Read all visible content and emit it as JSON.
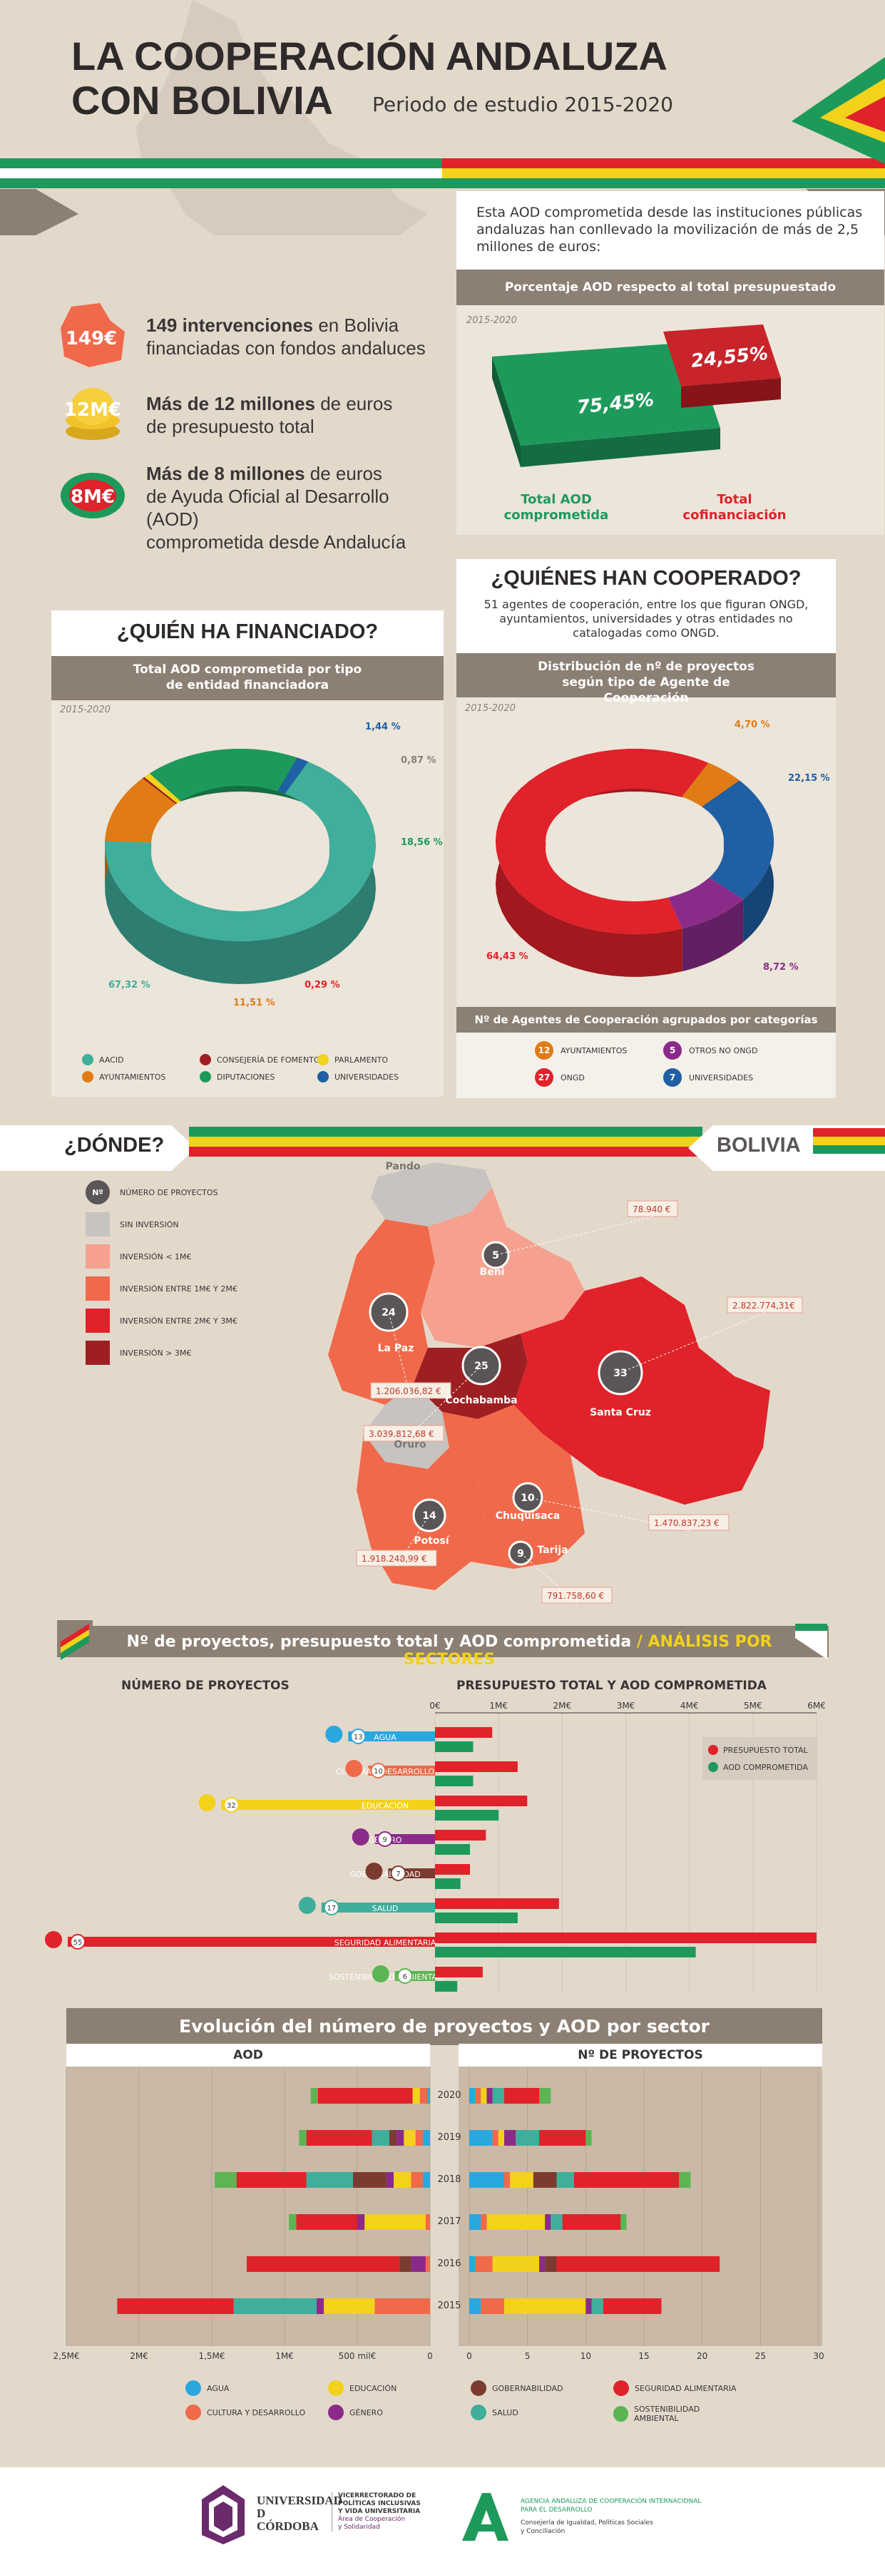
{
  "header": {
    "title_line1": "LA COOPERACIÓN ANDALUZA",
    "title_line2": "CON BOLIVIA",
    "period": "Periodo de estudio 2015-2020"
  },
  "colors": {
    "green": "#1d9a5b",
    "red": "#e0222a",
    "yellow": "#f2d21b",
    "brown": "#8c7f73",
    "teal": "#3fae9b",
    "orange": "#e07b16",
    "blue": "#1f5fa3",
    "purple": "#8a2b8a",
    "darkred": "#9e1f22",
    "lightblue": "#2aa7df"
  },
  "stats": [
    {
      "badge": "149€",
      "bold": "149 intervenciones",
      "text1": " en Bolivia",
      "line2": "financiadas con fondos andaluces"
    },
    {
      "badge": "12M€",
      "bold": "Más de 12 millones",
      "text1": " de euros",
      "line2": "de presupuesto total"
    },
    {
      "badge": "8M€",
      "bold": "Más de 8 millones",
      "text1": " de euros",
      "line2": "de Ayuda Oficial al Desarrollo (AOD)",
      "line3": "comprometida desde Andalucía"
    }
  ],
  "aod_box": {
    "intro": "Esta AOD comprometida desde las instituciones públicas andaluzas han conllevado la movilización de más de 2,5 millones de euros:",
    "header": "Porcentaje AOD respecto al total presupuestado",
    "period": "2015-2020",
    "label_green": "Total AOD comprometida",
    "label_red": "Total cofinanciación"
  },
  "financed": {
    "title": "¿QUIÉN HA FINANCIADO?",
    "header": "Total AOD comprometida por tipo de entidad financiadora",
    "period": "2015-2020",
    "legend": [
      {
        "name": "AACID",
        "color": "#3fae9b"
      },
      {
        "name": "CONSEJERÍA DE FOMENTO",
        "color": "#9e1f22"
      },
      {
        "name": "PARLAMENTO",
        "color": "#f2d21b"
      },
      {
        "name": "AYUNTAMIENTOS",
        "color": "#e07b16"
      },
      {
        "name": "DIPUTACIONES",
        "color": "#1d9a5b"
      },
      {
        "name": "UNIVERSIDADES",
        "color": "#1f5fa3"
      }
    ]
  },
  "cooperated": {
    "title": "¿QUIÉNES HAN COOPERADO?",
    "intro": "51 agentes de cooperación, entre los que figuran ONGD, ayuntamientos, universidades y otras entidades no catalogadas como ONGD.",
    "header": "Distribución de nº de proyectos según tipo de Agente de Cooperación",
    "period": "2015-2020",
    "footer_header": "Nº de Agentes de Cooperación agrupados por categorías",
    "agents": [
      {
        "count": "12",
        "name": "AYUNTAMIENTOS",
        "color": "#e07b16"
      },
      {
        "count": "5",
        "name": "OTROS NO ONGD",
        "color": "#8a2b8a"
      },
      {
        "count": "27",
        "name": "ONGD",
        "color": "#e0222a"
      },
      {
        "count": "7",
        "name": "UNIVERSIDADES",
        "color": "#1f5fa3"
      }
    ]
  },
  "where": {
    "title": "¿DÓNDE?",
    "country": "BOLIVIA",
    "legend": [
      {
        "label": "NÚMERO DE PROYECTOS",
        "color": "#5a5556",
        "badge": "Nº"
      },
      {
        "label": "SIN INVERSIÓN",
        "color": "#c7c3c1"
      },
      {
        "label": "INVERSIÓN < 1M€",
        "color": "#f6a18f"
      },
      {
        "label": "INVERSIÓN ENTRE 1M€ Y 2M€",
        "color": "#f0694a"
      },
      {
        "label": "INVERSIÓN ENTRE 2M€ Y 3M€",
        "color": "#e0222a"
      },
      {
        "label": "INVERSIÓN > 3M€",
        "color": "#9e1f22"
      }
    ],
    "regions": [
      {
        "name": "Pando",
        "projects": "",
        "amount": ""
      },
      {
        "name": "Beni",
        "projects": "5",
        "amount": "78.940 €"
      },
      {
        "name": "La Paz",
        "projects": "24",
        "amount": "1.206.036,82 €"
      },
      {
        "name": "Cochabamba",
        "projects": "25",
        "amount": "3.039.812,68 €"
      },
      {
        "name": "Santa Cruz",
        "projects": "33",
        "amount": "2.822.774,31€"
      },
      {
        "name": "Oruro",
        "projects": "",
        "amount": ""
      },
      {
        "name": "Potosí",
        "projects": "14",
        "amount": "1.918.248,99 €"
      },
      {
        "name": "Chuquisaca",
        "projects": "10",
        "amount": "1.470.837,23 €"
      },
      {
        "name": "Tarija",
        "projects": "9",
        "amount": "791.758,60 €"
      }
    ]
  },
  "sectors": {
    "title": "Nº de proyectos, presupuesto total y AOD comprometida",
    "title_accent": " / ANÁLISIS POR SECTORES",
    "left_header": "NÚMERO DE PROYECTOS",
    "right_header": "PRESUPUESTO TOTAL Y AOD COMPROMETIDA",
    "legend_budget": "PRESUPUESTO TOTAL",
    "legend_aod": "AOD COMPROMETIDA"
  },
  "evolution": {
    "title": "Evolución del número de proyectos y AOD por sector",
    "left_header": "AOD",
    "right_header": "Nº DE PROYECTOS",
    "legend": [
      {
        "name": "AGUA",
        "icon": "drop-icon",
        "color": "#2aa7df"
      },
      {
        "name": "EDUCACIÓN",
        "icon": "book-icon",
        "color": "#f2d21b"
      },
      {
        "name": "GOBERNABILIDAD",
        "icon": "flag-icon",
        "color": "#7b3b30"
      },
      {
        "name": "SEGURIDAD ALIMENTARIA",
        "icon": "apple-icon",
        "color": "#e0222a"
      },
      {
        "name": "CULTURA Y DESARROLLO",
        "icon": "gear-icon",
        "color": "#f0694a"
      },
      {
        "name": "GÉNERO",
        "icon": "gender-icon",
        "color": "#8a2b8a"
      },
      {
        "name": "SALUD",
        "icon": "heart-icon",
        "color": "#3fae9b"
      },
      {
        "name": "SOSTENIBILIDAD AMBIENTAL",
        "icon": "recycle-icon",
        "color": "#5ab552"
      }
    ]
  },
  "footer": {
    "uco_name1": "UNIVERSIDAD",
    "uco_name2": "D",
    "uco_name3": "CÓRDOBA",
    "uco_dept1": "VICERRECTORADO DE",
    "uco_dept2": "POLÍTICAS INCLUSIVAS",
    "uco_dept3": "Y VIDA UNIVERSITARIA",
    "uco_dept4": "Área de Cooperación",
    "uco_dept5": "y Solidaridad",
    "aacid1": "AGENCIA ANDALUZA DE COOPERACIÓN INTERNACIONAL",
    "aacid2": "PARA EL DESARROLLO",
    "aacid3": "Consejería de Igualdad, Políticas Sociales",
    "aacid4": "y Conciliación"
  },
  "chart_data": [
    {
      "type": "bar",
      "title": "Porcentaje AOD respecto al total presupuestado",
      "categories": [
        "Total AOD comprometida",
        "Total cofinanciación"
      ],
      "values": [
        75.45,
        24.55
      ],
      "value_labels": [
        "75,45%",
        "24,55%"
      ]
    },
    {
      "type": "pie",
      "title": "Total AOD comprometida por tipo de entidad financiadora",
      "categories": [
        "AACID",
        "AYUNTAMIENTOS",
        "CONSEJERÍA DE FOMENTO",
        "PARLAMENTO",
        "DIPUTACIONES",
        "UNIVERSIDADES"
      ],
      "values": [
        67.32,
        11.51,
        0.29,
        0.87,
        18.56,
        1.44
      ],
      "value_labels": [
        "67,32 %",
        "11,51 %",
        "0,29 %",
        "0,87 %",
        "18,56 %",
        "1,44 %"
      ]
    },
    {
      "type": "pie",
      "title": "Distribución de nº de proyectos según tipo de Agente de Cooperación",
      "categories": [
        "ONGD",
        "AYUNTAMIENTOS",
        "UNIVERSIDADES",
        "OTROS NO ONGD"
      ],
      "values": [
        64.43,
        4.7,
        22.15,
        8.72
      ],
      "value_labels": [
        "64,43 %",
        "4,70 %",
        "22,15 %",
        "8,72 %"
      ]
    },
    {
      "type": "bar",
      "title": "NÚMERO DE PROYECTOS",
      "categories": [
        "AGUA",
        "CULTURA Y DESARROLLO",
        "EDUCACIÓN",
        "GÉNERO",
        "GOBERNABILIDAD",
        "SALUD",
        "SEGURIDAD ALIMENTARIA",
        "SOSTENIBILIDAD AMBIENTAL"
      ],
      "values": [
        13,
        10,
        32,
        9,
        7,
        17,
        55,
        6
      ],
      "colors": [
        "#2aa7df",
        "#f0694a",
        "#f2d21b",
        "#8a2b8a",
        "#7b3b30",
        "#3fae9b",
        "#e0222a",
        "#5ab552"
      ]
    },
    {
      "type": "bar",
      "title": "PRESUPUESTO TOTAL Y AOD COMPROMETIDA",
      "tick_labels": [
        "0€",
        "1M€",
        "2M€",
        "3M€",
        "4M€",
        "5M€",
        "6M€"
      ],
      "xlim": [
        0,
        6
      ],
      "categories": [
        "AGUA",
        "CULTURA Y DESARROLLO",
        "EDUCACIÓN",
        "GÉNERO",
        "GOBERNABILIDAD",
        "SALUD",
        "SEGURIDAD ALIMENTARIA",
        "SOSTENIBILIDAD AMBIENTAL"
      ],
      "series": [
        {
          "name": "PRESUPUESTO TOTAL",
          "color": "#e0222a",
          "values": [
            0.9,
            1.3,
            1.45,
            0.8,
            0.55,
            1.95,
            6.0,
            0.75
          ]
        },
        {
          "name": "AOD COMPROMETIDA",
          "color": "#1d9a5b",
          "values": [
            0.6,
            0.6,
            1.0,
            0.55,
            0.4,
            1.3,
            4.1,
            0.35
          ]
        }
      ]
    },
    {
      "type": "bar",
      "title": "Evolución del número de proyectos y AOD por sector",
      "categories": [
        "2020",
        "2019",
        "2018",
        "2017",
        "2016",
        "2015"
      ],
      "aod_ticks": [
        "2,5M€",
        "2M€",
        "1,5M€",
        "1M€",
        "500 mil€",
        "0"
      ],
      "projects_ticks": [
        "0",
        "5",
        "10",
        "15",
        "20",
        "25",
        "30"
      ],
      "aod_xlim": [
        0,
        2.5
      ],
      "projects_xlim": [
        0,
        30
      ],
      "sectors": [
        "AGUA",
        "CULTURA Y DESARROLLO",
        "EDUCACIÓN",
        "GÉNERO",
        "GOBERNABILIDAD",
        "SALUD",
        "SEGURIDAD ALIMENTARIA",
        "SOSTENIBILIDAD AMBIENTAL"
      ],
      "aod_series": [
        {
          "name": "AGUA",
          "values": [
            0.02,
            0.05,
            0.05,
            0.0,
            0.0,
            0.0
          ]
        },
        {
          "name": "CULTURA Y DESARROLLO",
          "values": [
            0.05,
            0.05,
            0.08,
            0.03,
            0.03,
            0.38
          ]
        },
        {
          "name": "EDUCACIÓN",
          "values": [
            0.05,
            0.08,
            0.12,
            0.42,
            0.0,
            0.35
          ]
        },
        {
          "name": "GÉNERO",
          "values": [
            0.0,
            0.05,
            0.05,
            0.05,
            0.1,
            0.05
          ]
        },
        {
          "name": "GOBERNABILIDAD",
          "values": [
            0.0,
            0.05,
            0.23,
            0.0,
            0.08,
            0.0
          ]
        },
        {
          "name": "SALUD",
          "values": [
            0.0,
            0.12,
            0.32,
            0.0,
            0.0,
            0.57
          ]
        },
        {
          "name": "SEGURIDAD ALIMENTARIA",
          "values": [
            0.65,
            0.45,
            0.48,
            0.42,
            1.05,
            0.8
          ]
        },
        {
          "name": "SOSTENIBILIDAD AMBIENTAL",
          "values": [
            0.05,
            0.05,
            0.15,
            0.05,
            0.0,
            0.0
          ]
        }
      ],
      "projects_series": [
        {
          "name": "AGUA",
          "values": [
            0.5,
            2,
            3,
            1,
            0.5,
            1
          ]
        },
        {
          "name": "CULTURA Y DESARROLLO",
          "values": [
            0.5,
            0.5,
            0.5,
            0.5,
            1.5,
            2
          ]
        },
        {
          "name": "EDUCACIÓN",
          "values": [
            0.5,
            0.5,
            2,
            5,
            4,
            7
          ]
        },
        {
          "name": "GÉNERO",
          "values": [
            0.5,
            1,
            0,
            0.5,
            0.5,
            0.5
          ]
        },
        {
          "name": "GOBERNABILIDAD",
          "values": [
            0,
            0,
            2,
            0,
            1,
            0
          ]
        },
        {
          "name": "SALUD",
          "values": [
            1,
            2,
            1.5,
            1,
            0,
            1
          ]
        },
        {
          "name": "SEGURIDAD ALIMENTARIA",
          "values": [
            3,
            4,
            9,
            5,
            14,
            5
          ]
        },
        {
          "name": "SOSTENIBILIDAD AMBIENTAL",
          "values": [
            1,
            0.5,
            1,
            0.5,
            0,
            0
          ]
        }
      ]
    }
  ]
}
